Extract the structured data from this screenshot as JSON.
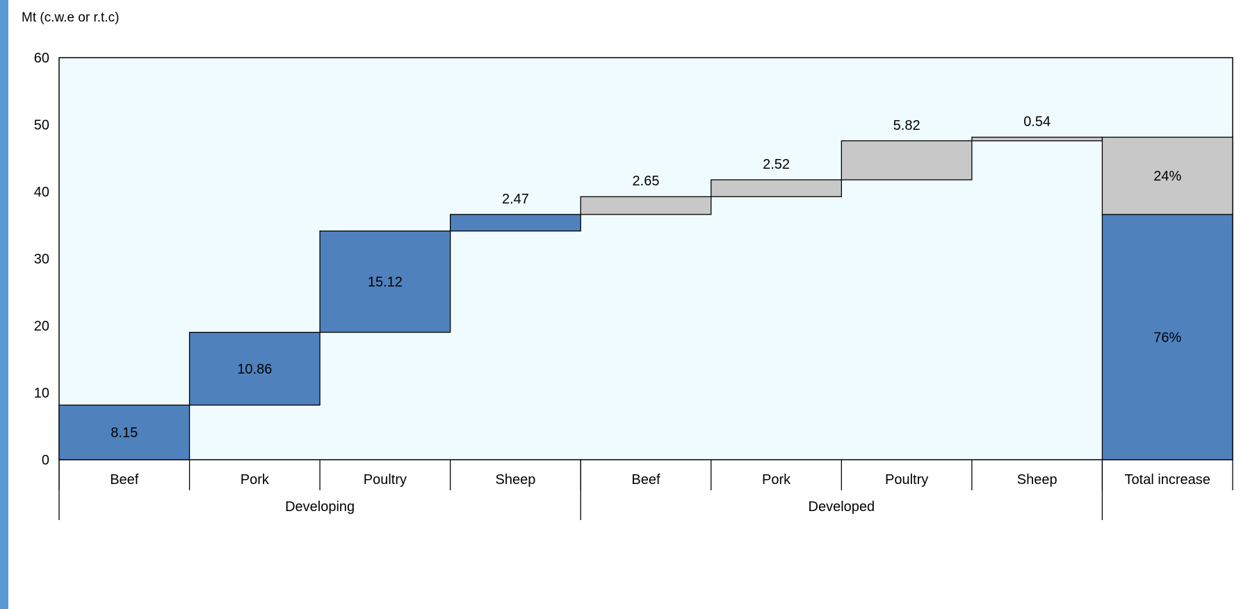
{
  "chart_data": {
    "type": "waterfall",
    "ylabel": "Mt (c.w.e or r.t.c)",
    "ylim": [
      0,
      60
    ],
    "yticks": [
      0,
      10,
      20,
      30,
      40,
      50,
      60
    ],
    "grid": false,
    "colors": {
      "developing": "#4f81bd",
      "developed": "#c8c8c8",
      "plot_bg": "#f0fbff",
      "outline": "#000000"
    },
    "groups": [
      {
        "name": "Developing",
        "span": [
          0,
          4
        ]
      },
      {
        "name": "Developed",
        "span": [
          4,
          8
        ]
      }
    ],
    "categories": [
      "Beef",
      "Pork",
      "Poultry",
      "Sheep",
      "Beef",
      "Pork",
      "Poultry",
      "Sheep",
      "Total increase"
    ],
    "steps": [
      {
        "category": "Beef",
        "group": "Developing",
        "value": 8.15,
        "label": "8.15"
      },
      {
        "category": "Pork",
        "group": "Developing",
        "value": 10.86,
        "label": "10.86"
      },
      {
        "category": "Poultry",
        "group": "Developing",
        "value": 15.12,
        "label": "15.12"
      },
      {
        "category": "Sheep",
        "group": "Developing",
        "value": 2.47,
        "label": "2.47"
      },
      {
        "category": "Beef",
        "group": "Developed",
        "value": 2.65,
        "label": "2.65"
      },
      {
        "category": "Pork",
        "group": "Developed",
        "value": 2.52,
        "label": "2.52"
      },
      {
        "category": "Poultry",
        "group": "Developed",
        "value": 5.82,
        "label": "5.82"
      },
      {
        "category": "Sheep",
        "group": "Developed",
        "value": 0.54,
        "label": "0.54"
      }
    ],
    "total": {
      "category": "Total increase",
      "segments": [
        {
          "group": "Developing",
          "share_label": "76%"
        },
        {
          "group": "Developed",
          "share_label": "24%"
        }
      ]
    }
  }
}
